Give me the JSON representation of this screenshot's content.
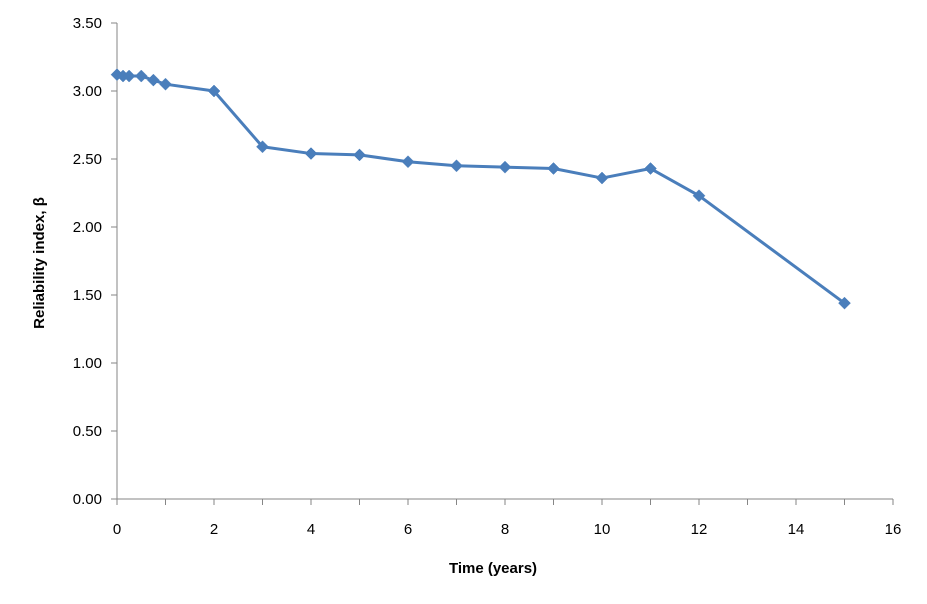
{
  "chart_data": {
    "type": "line",
    "title": "",
    "xlabel": "Time (years)",
    "ylabel": "Reliability index, β",
    "xlim": [
      0,
      16
    ],
    "ylim": [
      0,
      3.5
    ],
    "xticks": [
      0,
      2,
      4,
      6,
      8,
      10,
      12,
      14,
      16
    ],
    "xtick_labels": [
      "0",
      "2",
      "4",
      "6",
      "8",
      "10",
      "12",
      "14",
      "16"
    ],
    "yticks": [
      0,
      0.5,
      1.0,
      1.5,
      2.0,
      2.5,
      3.0,
      3.5
    ],
    "ytick_labels": [
      "0.00",
      "0.50",
      "1.00",
      "1.50",
      "2.00",
      "2.50",
      "3.00",
      "3.50"
    ],
    "grid": false,
    "legend": "none",
    "series": [
      {
        "color": "#4a7ebb",
        "marker": "diamond",
        "x": [
          0,
          0.125,
          0.25,
          0.5,
          0.75,
          1,
          2,
          3,
          4,
          5,
          6,
          7,
          8,
          9,
          10,
          11,
          12,
          15
        ],
        "y": [
          3.12,
          3.11,
          3.11,
          3.11,
          3.08,
          3.05,
          3.0,
          2.59,
          2.54,
          2.53,
          2.48,
          2.45,
          2.44,
          2.43,
          2.36,
          2.43,
          2.23,
          1.44
        ]
      }
    ]
  }
}
